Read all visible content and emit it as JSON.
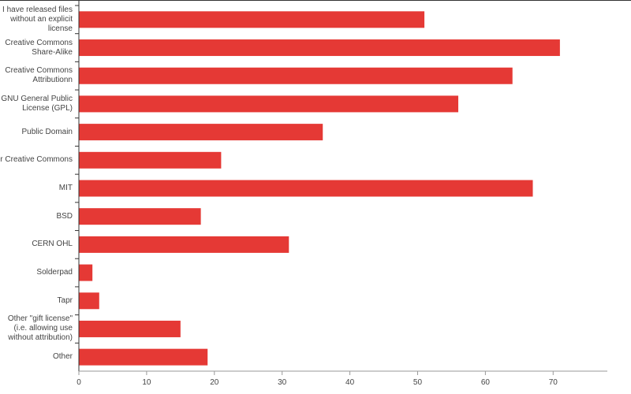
{
  "chart_data": {
    "type": "bar",
    "orientation": "horizontal",
    "categories": [
      "I have released files without an explicit license",
      "Creative Commons Share-Alike",
      "Creative Commons Attributionn",
      "GNU General Public License (GPL)",
      "Public Domain",
      "r Creative Commons",
      "MIT",
      "BSD",
      "CERN OHL",
      "Solderpad",
      "Tapr",
      "Other \"gift license\" (i.e. allowing use without attribution)",
      "Other"
    ],
    "values": [
      51,
      71,
      64,
      56,
      36,
      21,
      67,
      18,
      31,
      2,
      3,
      15,
      19
    ],
    "color": "#e53935",
    "xlim": [
      0,
      78
    ],
    "xticks": [
      0,
      10,
      20,
      30,
      40,
      50,
      60,
      70
    ]
  }
}
